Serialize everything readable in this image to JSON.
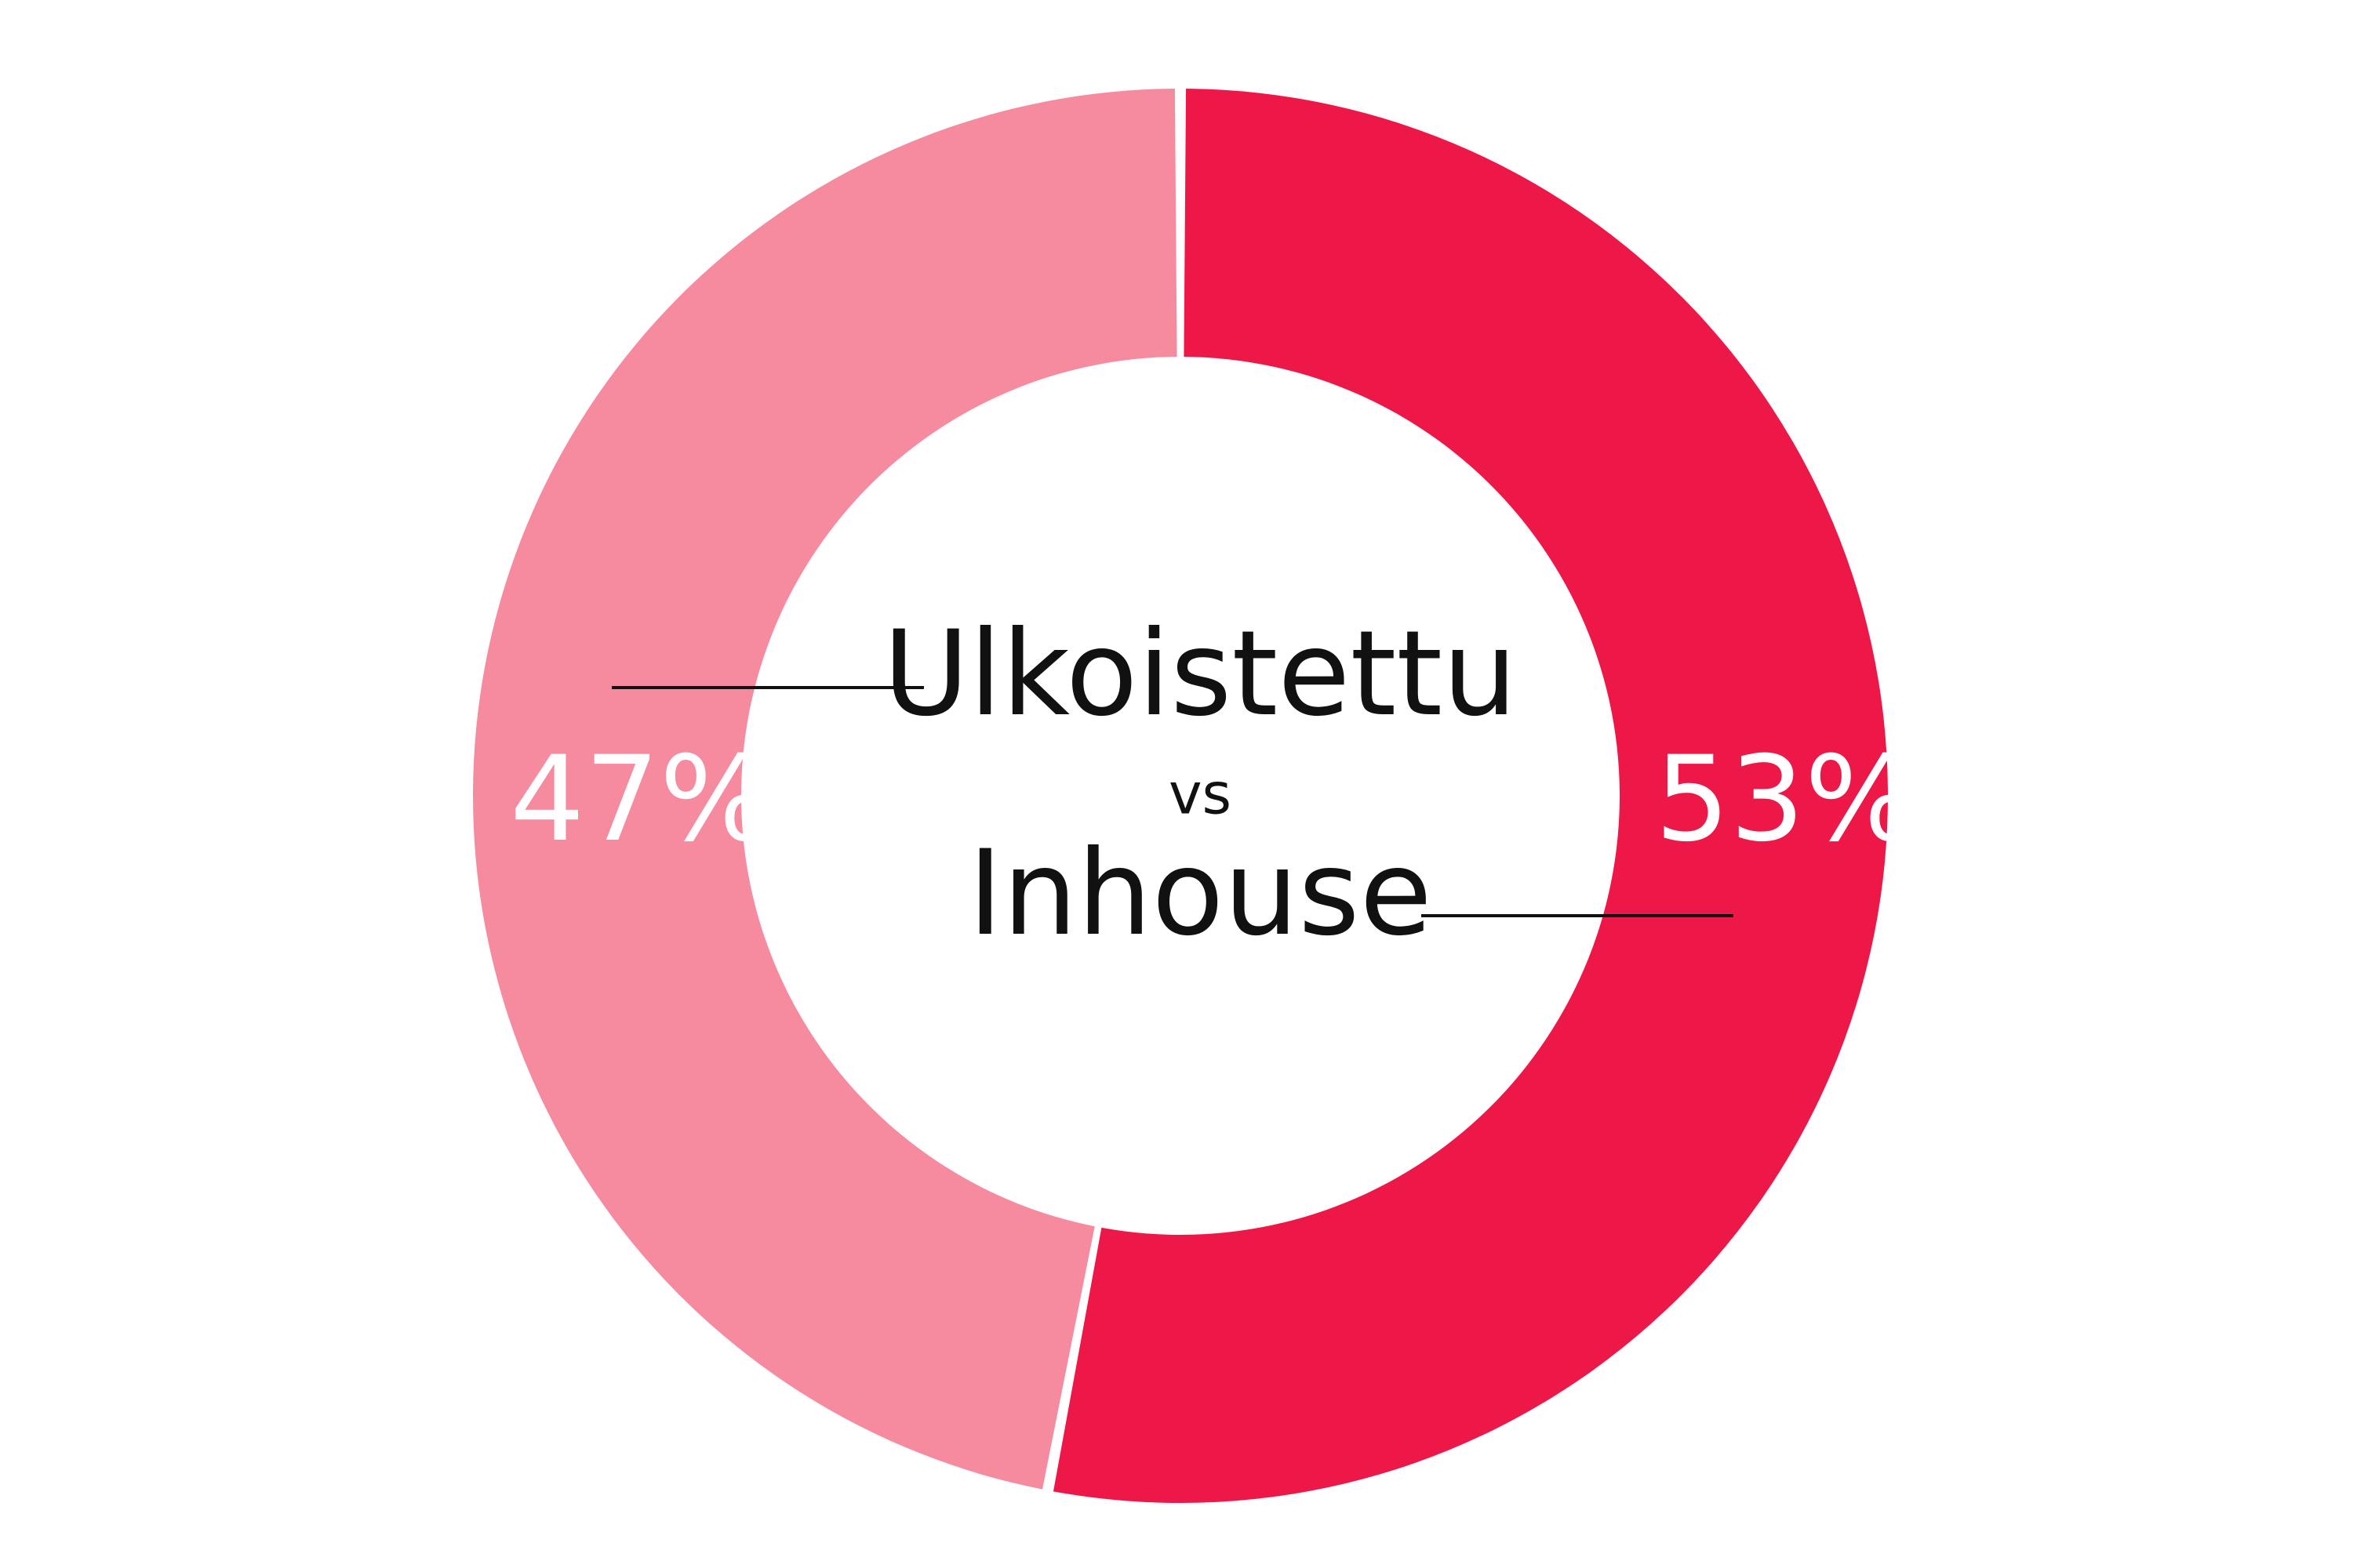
{
  "chart_data": {
    "type": "pie",
    "categories": [
      "Inhouse",
      "Ulkoistettu"
    ],
    "values": [
      53,
      47
    ],
    "unit": "%",
    "value_labels": [
      "53%",
      "47%"
    ],
    "colors": [
      "#ED1847",
      "#F68BA0"
    ],
    "center_text": {
      "top": "Ulkoistettu",
      "middle": "vs",
      "bottom": "Inhouse"
    }
  }
}
